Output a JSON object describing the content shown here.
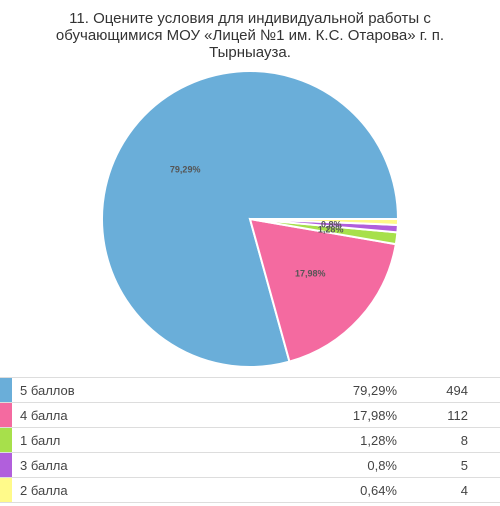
{
  "title": "11. Оцените условия для индивидуальной работы с обучающимися МОУ «Лицей №1 им. К.С. Отарова» г. п. Тырныауза.",
  "chart_data": {
    "type": "pie",
    "title": "11. Оцените условия для индивидуальной работы с обучающимися МОУ «Лицей №1 им. К.С. Отарова» г. п. Тырныауза.",
    "slices": [
      {
        "name": "5 баллов",
        "percent": 79.29,
        "percent_label": "79,29%",
        "count": "494",
        "color": "#6aaed9",
        "show_label": true
      },
      {
        "name": "4 балла",
        "percent": 17.98,
        "percent_label": "17,98%",
        "count": "112",
        "color": "#f46aa0",
        "show_label": true
      },
      {
        "name": "1 балл",
        "percent": 1.28,
        "percent_label": "1,28%",
        "count": "8",
        "color": "#a7e04b",
        "show_label": true
      },
      {
        "name": "3 балла",
        "percent": 0.8,
        "percent_label": "0,8%",
        "count": "5",
        "color": "#b15fdc",
        "show_label": true
      },
      {
        "name": "2 балла",
        "percent": 0.64,
        "percent_label": "0,64%",
        "count": "4",
        "color": "#fffa8a",
        "show_label": false
      }
    ]
  }
}
